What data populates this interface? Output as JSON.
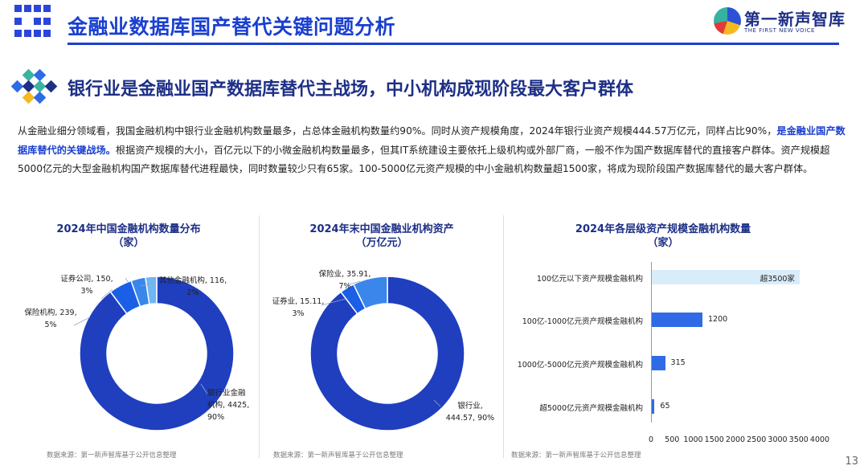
{
  "page": {
    "title": "金融业数据库国产替代关键问题分析",
    "logo_cn": "第一新声智库",
    "logo_en": "THE FIRST NEW VOICE",
    "heading": "银行业是金融业国产数据库替代主战场，中小机构成现阶段最大客户群体",
    "intro_part1": "从金融业细分领域看，我国金融机构中银行业金融机构数量最多，占总体金融机构数量约90%。同时从资产规模角度，2024年银行业资产规模444.57万亿元，同样占比90%，",
    "intro_highlight": "是金融业国产数据库替代的关键战场。",
    "intro_part2": "根据资产规模的大小，百亿元以下的小微金融机构数量最多，但其IT系统建设主要依托上级机构或外部厂商，一般不作为国产数据库替代的直接客户群体。资产规模超5000亿元的大型金融机构国产数据库替代进程最快，同时数量较少只有65家。100-5000亿元资产规模的中小金融机构数量超1500家，将成为现阶段国产数据库替代的最大客户群体。",
    "page_number": "13",
    "source_text": "数据来源：第一新声智库基于公开信息整理",
    "colors": {
      "primary": "#1a3fd0",
      "navy": "#1d2f86",
      "bar_light": "#d9ecfa",
      "bar": "#2f6be6"
    }
  },
  "chart_data": [
    {
      "type": "pie",
      "title": "2024年中国金融机构数量分布",
      "subtitle": "（家）",
      "slices": [
        {
          "name": "银行业金融机构",
          "value": 4425,
          "percent": "90%",
          "color": "#1f3fbf"
        },
        {
          "name": "保险机构",
          "value": 239,
          "percent": "5%",
          "color": "#1a5fe6"
        },
        {
          "name": "证券公司",
          "value": 150,
          "percent": "3%",
          "color": "#3a86ea"
        },
        {
          "name": "其他金融机构",
          "value": 116,
          "percent": "2%",
          "color": "#6fb6f2"
        }
      ],
      "labels": {
        "bank_line1": "银行业金融",
        "bank_line2": "机构, 4425,",
        "bank_line3": "90%",
        "insurance_line1": "保险机构, 239,",
        "insurance_line2": "5%",
        "securities_line1": "证券公司, 150,",
        "securities_line2": "3%",
        "other_line1": "其他金融机构, 116,",
        "other_line2": "2%"
      }
    },
    {
      "type": "pie",
      "title": "2024年末中国金融业机构资产",
      "subtitle": "（万亿元）",
      "slices": [
        {
          "name": "银行业",
          "value": 444.57,
          "percent": "90%",
          "color": "#1f3fbf"
        },
        {
          "name": "证券业",
          "value": 15.11,
          "percent": "3%",
          "color": "#1a5fe6"
        },
        {
          "name": "保险业",
          "value": 35.91,
          "percent": "7%",
          "color": "#3a86ea"
        }
      ],
      "labels": {
        "bank_line1": "银行业,",
        "bank_line2": "444.57, 90%",
        "securities_line1": "证券业, 15.11,",
        "securities_line2": "3%",
        "insurance_line1": "保险业, 35.91,",
        "insurance_line2": "7%"
      }
    },
    {
      "type": "bar",
      "orientation": "horizontal",
      "title": "2024年各层级资产规模金融机构数量",
      "subtitle": "（家）",
      "categories": [
        "100亿元以下资产规模金融机构",
        "100亿-1000亿元资产规模金融机构",
        "1000亿-5000亿元资产规模金融机构",
        "超5000亿元资产规模金融机构"
      ],
      "values": [
        3500,
        1200,
        315,
        65
      ],
      "value_labels": [
        "超3500家",
        "1200",
        "315",
        "65"
      ],
      "xlim": [
        0,
        4000
      ],
      "xticks": [
        0,
        500,
        1000,
        1500,
        2000,
        2500,
        3000,
        3500,
        4000
      ]
    }
  ]
}
